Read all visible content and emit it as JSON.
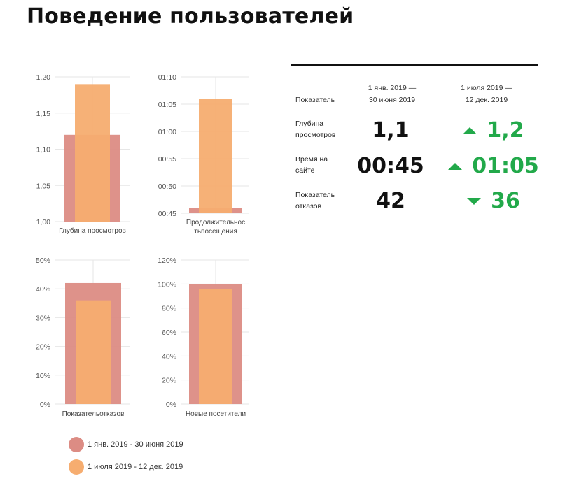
{
  "page": {
    "title": "Поведение пользователей"
  },
  "colors": {
    "period1": "#dc8c84",
    "period2": "#f6ad70",
    "accent_green": "#22a94a",
    "grid": "#e6e6e6"
  },
  "legend": {
    "period1_label": "1 янв. 2019 - 30 июня 2019",
    "period2_label": "1 июля 2019 - 12 дек. 2019"
  },
  "summary": {
    "header": {
      "metric": "Показатель",
      "period1_line1": "1 янв. 2019 —",
      "period1_line2": "30 июня 2019",
      "period2_line1": "1 июля 2019 —",
      "period2_line2": "12 дек. 2019"
    },
    "rows": [
      {
        "label_line1": "Глубина",
        "label_line2": "просмотров",
        "period1_value": "1,1",
        "period2_value": "1,2",
        "trend": "up",
        "trend_icon": "triangle-up-icon"
      },
      {
        "label_line1": "Время на",
        "label_line2": "сайте",
        "period1_value": "00:45",
        "period2_value": "01:05",
        "trend": "up",
        "trend_icon": "triangle-up-icon"
      },
      {
        "label_line1": "Показатель",
        "label_line2": "отказов",
        "period1_value": "42",
        "period2_value": "36",
        "trend": "down",
        "trend_icon": "triangle-down-icon"
      }
    ]
  },
  "chart_data": [
    {
      "type": "bar",
      "xlabel": [
        "Глубина просмотров"
      ],
      "categories": [
        "1 янв. 2019 - 30 июня 2019",
        "1 июля 2019 - 12 дек. 2019"
      ],
      "values": [
        1.12,
        1.19
      ],
      "ylim": [
        1.0,
        1.2
      ],
      "yticks": [
        1.0,
        1.05,
        1.1,
        1.15,
        1.2
      ],
      "yticklabels": [
        "1,00",
        "1,05",
        "1,10",
        "1,15",
        "1,20"
      ],
      "grid": true
    },
    {
      "type": "bar",
      "xlabel": [
        "Продолжительнос",
        "тьпосещения"
      ],
      "categories": [
        "1 янв. 2019 - 30 июня 2019",
        "1 июля 2019 - 12 дек. 2019"
      ],
      "values": [
        46,
        66
      ],
      "value_unit": "seconds",
      "ylim": [
        45,
        70
      ],
      "yticks": [
        45,
        50,
        55,
        60,
        65,
        70
      ],
      "yticklabels": [
        "00:45",
        "00:50",
        "00:55",
        "01:00",
        "01:05",
        "01:10"
      ],
      "grid": true
    },
    {
      "type": "bar",
      "xlabel": [
        "Показательотказов"
      ],
      "categories": [
        "1 янв. 2019 - 30 июня 2019",
        "1 июля 2019 - 12 дек. 2019"
      ],
      "values": [
        42,
        36
      ],
      "ylim": [
        0,
        50
      ],
      "yticks": [
        0,
        10,
        20,
        30,
        40,
        50
      ],
      "yticklabels": [
        "0%",
        "10%",
        "20%",
        "30%",
        "40%",
        "50%"
      ],
      "grid": true
    },
    {
      "type": "bar",
      "xlabel": [
        "Новые посетители"
      ],
      "categories": [
        "1 янв. 2019 - 30 июня 2019",
        "1 июля 2019 - 12 дек. 2019"
      ],
      "values": [
        100,
        96
      ],
      "ylim": [
        0,
        120
      ],
      "yticks": [
        0,
        20,
        40,
        60,
        80,
        100,
        120
      ],
      "yticklabels": [
        "0%",
        "20%",
        "40%",
        "60%",
        "80%",
        "100%",
        "120%"
      ],
      "grid": true
    }
  ]
}
